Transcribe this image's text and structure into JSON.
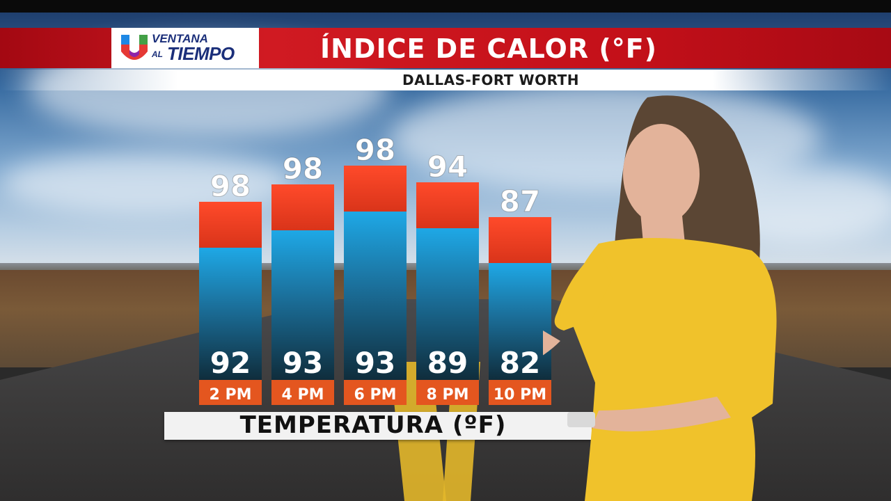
{
  "header": {
    "logo_line1": "VENTANA",
    "logo_al": "AL",
    "logo_line2": "TIEMPO",
    "title": "ÍNDICE DE CALOR (°F)",
    "subtitle": "DALLAS-FORT WORTH"
  },
  "colors": {
    "header_red": "#c41019",
    "heat_red": "#ee3e1e",
    "temp_blue": "#1da3e0",
    "bar_dark": "#163848",
    "time_orange": "#e4561f"
  },
  "chart_data": {
    "type": "bar",
    "title": "ÍNDICE DE CALOR (°F)",
    "xlabel": "TEMPERATURA (ºF)",
    "categories": [
      "2 PM",
      "4 PM",
      "6 PM",
      "8 PM",
      "10 PM"
    ],
    "series": [
      {
        "name": "Índice de calor",
        "values": [
          98,
          98,
          98,
          94,
          87
        ]
      },
      {
        "name": "Temperatura",
        "values": [
          92,
          93,
          93,
          89,
          82
        ]
      }
    ],
    "ylim": [
      0,
      100
    ]
  }
}
